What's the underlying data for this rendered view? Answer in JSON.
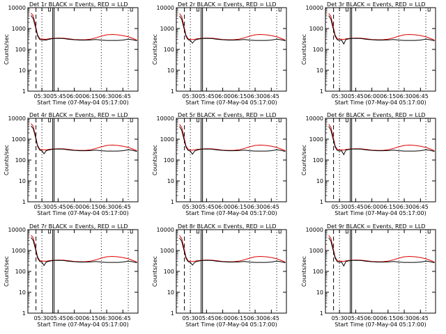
{
  "page": {
    "background": "#ffffff",
    "foreground": "#000000"
  },
  "panel_title_suffix": "BLACK = Events, RED = LLD",
  "shared": {
    "xlabel": "Start Time (07-May-04 05:17:00)",
    "ylabel": "Counts/sec",
    "x_tick_labels": [
      "05:30",
      "05:45",
      "06:00",
      "06:15",
      "06:30",
      "06:45"
    ],
    "y_tick_labels": [
      "1",
      "10",
      "100",
      "1000",
      "10000"
    ]
  },
  "chart_data": [
    {
      "type": "line",
      "title": "Det 1r",
      "xlabel": "Start Time (07-May-04 05:17:00)",
      "ylabel": "Counts/sec",
      "yscale": "log",
      "ylim": [
        1,
        10000
      ],
      "xlim_minutes": [
        317,
        419
      ],
      "x": [
        320,
        322,
        324,
        326,
        328,
        330,
        332,
        334,
        336,
        340,
        345,
        350,
        355,
        360,
        365,
        370,
        375,
        380,
        385,
        390,
        395,
        400,
        405,
        410,
        414,
        418
      ],
      "series": [
        {
          "name": "BLACK = Events",
          "color": "#000000",
          "values": [
            4200,
            3000,
            1200,
            450,
            300,
            280,
            285,
            280,
            300,
            330,
            340,
            330,
            305,
            290,
            280,
            280,
            285,
            300,
            280,
            270,
            270,
            270,
            280,
            310,
            290,
            260
          ]
        },
        {
          "name": "RED = LLD",
          "color": "#dd0000",
          "values": [
            5500,
            4000,
            1500,
            500,
            330,
            310,
            310,
            305,
            320,
            340,
            350,
            345,
            320,
            300,
            290,
            290,
            310,
            360,
            430,
            500,
            520,
            500,
            460,
            400,
            340,
            280
          ]
        }
      ],
      "dashed_markers": [
        324.5,
        330,
        385,
        410
      ],
      "solid_markers": [
        340,
        341.3
      ]
    },
    {
      "type": "line",
      "title": "Det 2r",
      "xlabel": "Start Time (07-May-04 05:17:00)",
      "ylabel": "Counts/sec",
      "yscale": "log",
      "ylim": [
        1,
        10000
      ],
      "xlim_minutes": [
        317,
        419
      ],
      "x": [
        320,
        322,
        324,
        326,
        328,
        330,
        332,
        334,
        336,
        340,
        345,
        350,
        355,
        360,
        365,
        370,
        375,
        380,
        385,
        390,
        395,
        400,
        405,
        410,
        414,
        418
      ],
      "series": [
        {
          "name": "BLACK = Events",
          "color": "#000000",
          "values": [
            4000,
            2800,
            1100,
            420,
            290,
            270,
            200,
            270,
            300,
            330,
            340,
            330,
            305,
            290,
            280,
            280,
            285,
            300,
            280,
            270,
            270,
            270,
            280,
            310,
            290,
            260
          ]
        },
        {
          "name": "RED = LLD",
          "color": "#dd0000",
          "values": [
            5200,
            3800,
            1400,
            480,
            320,
            300,
            300,
            305,
            320,
            340,
            350,
            345,
            320,
            300,
            290,
            290,
            310,
            360,
            430,
            500,
            520,
            500,
            460,
            400,
            340,
            280
          ]
        }
      ],
      "dashed_markers": [
        324.5,
        330,
        385,
        410
      ],
      "solid_markers": [
        340,
        341.3
      ]
    },
    {
      "type": "line",
      "title": "Det 3r",
      "xlabel": "Start Time (07-May-04 05:17:00)",
      "ylabel": "Counts/sec",
      "yscale": "log",
      "ylim": [
        1,
        10000
      ],
      "xlim_minutes": [
        317,
        419
      ],
      "x": [
        320,
        322,
        324,
        326,
        328,
        330,
        332,
        334,
        336,
        340,
        345,
        350,
        355,
        360,
        365,
        370,
        375,
        380,
        385,
        390,
        395,
        400,
        405,
        410,
        414,
        418
      ],
      "series": [
        {
          "name": "BLACK = Events",
          "color": "#000000",
          "values": [
            4100,
            2900,
            1100,
            430,
            290,
            270,
            280,
            180,
            300,
            330,
            340,
            330,
            305,
            290,
            280,
            280,
            285,
            300,
            280,
            270,
            270,
            270,
            280,
            310,
            290,
            260
          ]
        },
        {
          "name": "RED = LLD",
          "color": "#dd0000",
          "values": [
            5300,
            3900,
            1450,
            490,
            320,
            310,
            310,
            300,
            320,
            340,
            350,
            345,
            320,
            300,
            290,
            290,
            310,
            360,
            430,
            500,
            520,
            500,
            460,
            400,
            340,
            280
          ]
        }
      ],
      "dashed_markers": [
        324.5,
        330,
        385,
        410
      ],
      "solid_markers": [
        340,
        341.3
      ]
    },
    {
      "type": "line",
      "title": "Det 4r",
      "xlabel": "Start Time (07-May-04 05:17:00)",
      "ylabel": "Counts/sec",
      "yscale": "log",
      "ylim": [
        1,
        10000
      ],
      "xlim_minutes": [
        317,
        419
      ],
      "x": [
        320,
        322,
        324,
        326,
        328,
        330,
        332,
        334,
        336,
        340,
        345,
        350,
        355,
        360,
        365,
        370,
        375,
        380,
        385,
        390,
        395,
        400,
        405,
        410,
        414,
        418
      ],
      "series": [
        {
          "name": "BLACK = Events",
          "color": "#000000",
          "values": [
            4300,
            3200,
            1300,
            460,
            300,
            280,
            200,
            280,
            300,
            330,
            340,
            330,
            305,
            290,
            280,
            280,
            285,
            300,
            280,
            270,
            270,
            270,
            280,
            310,
            290,
            260
          ]
        },
        {
          "name": "RED = LLD",
          "color": "#dd0000",
          "values": [
            5600,
            4100,
            1550,
            510,
            330,
            310,
            310,
            305,
            320,
            340,
            350,
            345,
            320,
            300,
            290,
            290,
            310,
            360,
            430,
            500,
            520,
            500,
            460,
            400,
            340,
            280
          ]
        }
      ],
      "dashed_markers": [
        324.5,
        330,
        385,
        410
      ],
      "solid_markers": [
        340,
        341.3
      ]
    },
    {
      "type": "line",
      "title": "Det 5r",
      "xlabel": "Start Time (07-May-04 05:17:00)",
      "ylabel": "Counts/sec",
      "yscale": "log",
      "ylim": [
        1,
        10000
      ],
      "xlim_minutes": [
        317,
        419
      ],
      "x": [
        320,
        322,
        324,
        326,
        328,
        330,
        332,
        334,
        336,
        340,
        345,
        350,
        355,
        360,
        365,
        370,
        375,
        380,
        385,
        390,
        395,
        400,
        405,
        410,
        414,
        418
      ],
      "series": [
        {
          "name": "BLACK = Events",
          "color": "#000000",
          "values": [
            4000,
            2700,
            1050,
            410,
            290,
            270,
            190,
            270,
            300,
            330,
            340,
            330,
            305,
            290,
            280,
            280,
            285,
            300,
            280,
            270,
            270,
            270,
            280,
            310,
            290,
            260
          ]
        },
        {
          "name": "RED = LLD",
          "color": "#dd0000",
          "values": [
            5100,
            3700,
            1400,
            470,
            320,
            300,
            300,
            305,
            320,
            340,
            350,
            345,
            320,
            300,
            290,
            290,
            310,
            360,
            430,
            500,
            520,
            500,
            460,
            400,
            340,
            280
          ]
        }
      ],
      "dashed_markers": [
        324.5,
        330,
        385,
        410
      ],
      "solid_markers": [
        340,
        341.3
      ]
    },
    {
      "type": "line",
      "title": "Det 6r",
      "xlabel": "Start Time (07-May-04 05:17:00)",
      "ylabel": "Counts/sec",
      "yscale": "log",
      "ylim": [
        1,
        10000
      ],
      "xlim_minutes": [
        317,
        419
      ],
      "x": [
        320,
        322,
        324,
        326,
        328,
        330,
        332,
        334,
        336,
        340,
        345,
        350,
        355,
        360,
        365,
        370,
        375,
        380,
        385,
        390,
        395,
        400,
        405,
        410,
        414,
        418
      ],
      "series": [
        {
          "name": "BLACK = Events",
          "color": "#000000",
          "values": [
            4100,
            2800,
            1100,
            420,
            290,
            270,
            280,
            180,
            300,
            330,
            340,
            330,
            305,
            290,
            280,
            280,
            285,
            300,
            280,
            270,
            270,
            270,
            280,
            310,
            290,
            260
          ]
        },
        {
          "name": "RED = LLD",
          "color": "#dd0000",
          "values": [
            5200,
            3800,
            1450,
            480,
            320,
            305,
            310,
            300,
            320,
            340,
            350,
            345,
            320,
            300,
            290,
            290,
            310,
            360,
            430,
            500,
            520,
            500,
            460,
            400,
            340,
            280
          ]
        }
      ],
      "dashed_markers": [
        324.5,
        330,
        385,
        410
      ],
      "solid_markers": [
        340,
        341.3
      ]
    },
    {
      "type": "line",
      "title": "Det 7r",
      "xlabel": "Start Time (07-May-04 05:17:00)",
      "ylabel": "Counts/sec",
      "yscale": "log",
      "ylim": [
        1,
        10000
      ],
      "xlim_minutes": [
        317,
        419
      ],
      "x": [
        320,
        322,
        324,
        326,
        328,
        330,
        332,
        334,
        336,
        340,
        345,
        350,
        355,
        360,
        365,
        370,
        375,
        380,
        385,
        390,
        395,
        400,
        405,
        410,
        414,
        418
      ],
      "series": [
        {
          "name": "BLACK = Events",
          "color": "#000000",
          "values": [
            4200,
            3000,
            1200,
            440,
            300,
            280,
            190,
            280,
            300,
            330,
            340,
            330,
            305,
            290,
            280,
            280,
            285,
            300,
            280,
            270,
            270,
            270,
            280,
            310,
            290,
            260
          ]
        },
        {
          "name": "RED = LLD",
          "color": "#dd0000",
          "values": [
            5400,
            4000,
            1500,
            500,
            330,
            310,
            310,
            305,
            320,
            340,
            350,
            345,
            320,
            300,
            290,
            290,
            310,
            360,
            430,
            500,
            520,
            500,
            460,
            400,
            340,
            280
          ]
        }
      ],
      "dashed_markers": [
        324.5,
        330,
        385,
        410
      ],
      "solid_markers": [
        340,
        341.3
      ]
    },
    {
      "type": "line",
      "title": "Det 8r",
      "xlabel": "Start Time (07-May-04 05:17:00)",
      "ylabel": "Counts/sec",
      "yscale": "log",
      "ylim": [
        1,
        10000
      ],
      "xlim_minutes": [
        317,
        419
      ],
      "x": [
        320,
        322,
        324,
        326,
        328,
        330,
        332,
        334,
        336,
        340,
        345,
        350,
        355,
        360,
        365,
        370,
        375,
        380,
        385,
        390,
        395,
        400,
        405,
        410,
        414,
        418
      ],
      "series": [
        {
          "name": "BLACK = Events",
          "color": "#000000",
          "values": [
            4000,
            2800,
            1100,
            420,
            290,
            270,
            200,
            270,
            300,
            330,
            340,
            330,
            305,
            290,
            280,
            280,
            285,
            300,
            280,
            270,
            270,
            270,
            280,
            310,
            290,
            260
          ]
        },
        {
          "name": "RED = LLD",
          "color": "#dd0000",
          "values": [
            5200,
            3800,
            1450,
            480,
            320,
            300,
            300,
            305,
            320,
            340,
            350,
            345,
            320,
            300,
            290,
            290,
            310,
            360,
            430,
            500,
            520,
            500,
            460,
            400,
            340,
            280
          ]
        }
      ],
      "dashed_markers": [
        324.5,
        330,
        385,
        410
      ],
      "solid_markers": [
        340,
        341.3
      ]
    },
    {
      "type": "line",
      "title": "Det 9r",
      "xlabel": "Start Time (07-May-04 05:17:00)",
      "ylabel": "Counts/sec",
      "yscale": "log",
      "ylim": [
        1,
        10000
      ],
      "xlim_minutes": [
        317,
        419
      ],
      "x": [
        320,
        322,
        324,
        326,
        328,
        330,
        332,
        334,
        336,
        340,
        345,
        350,
        355,
        360,
        365,
        370,
        375,
        380,
        385,
        390,
        395,
        400,
        405,
        410,
        414,
        418
      ],
      "series": [
        {
          "name": "BLACK = Events",
          "color": "#000000",
          "values": [
            4100,
            2900,
            1150,
            430,
            290,
            270,
            280,
            180,
            300,
            330,
            340,
            330,
            305,
            290,
            280,
            280,
            285,
            300,
            280,
            270,
            270,
            270,
            280,
            310,
            290,
            260
          ]
        },
        {
          "name": "RED = LLD",
          "color": "#dd0000",
          "values": [
            5300,
            3900,
            1450,
            490,
            320,
            305,
            310,
            300,
            320,
            340,
            350,
            345,
            320,
            300,
            290,
            290,
            310,
            360,
            430,
            500,
            520,
            500,
            460,
            400,
            340,
            280
          ]
        }
      ],
      "dashed_markers": [
        324.5,
        330,
        385,
        410
      ],
      "solid_markers": [
        340,
        341.3
      ]
    }
  ]
}
